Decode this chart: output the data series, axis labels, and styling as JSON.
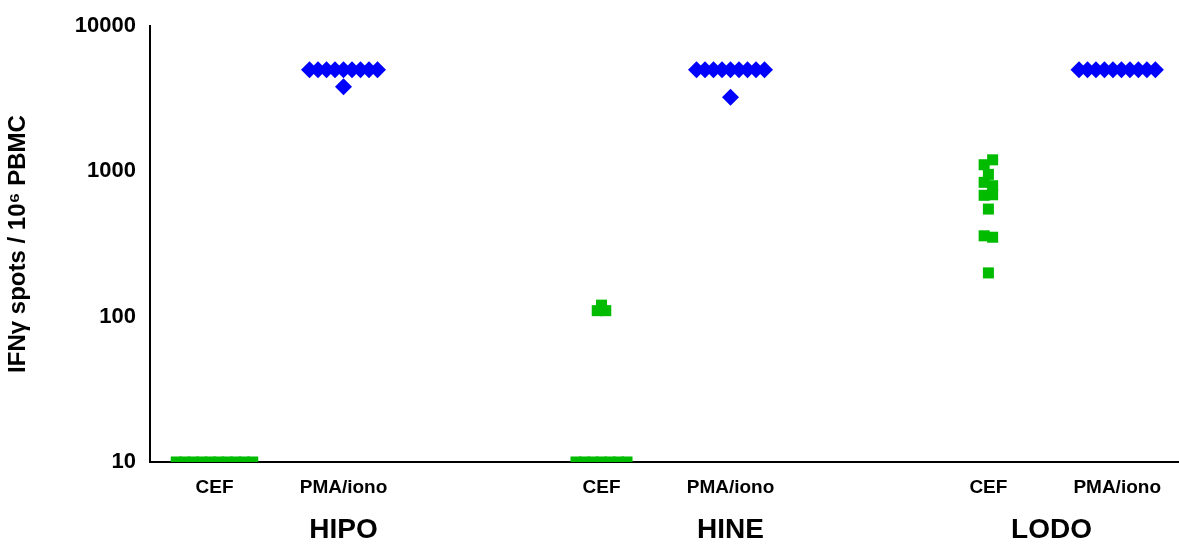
{
  "chart_data": [
    {
      "type": "scatter",
      "xlabel": "HIPO",
      "ylabel": "IFNγ spots / 10⁶ PBMC",
      "categories": [
        "CEF",
        "PMA/iono"
      ],
      "ylim": [
        10,
        10000
      ],
      "yticks": [
        10,
        100,
        1000,
        10000
      ],
      "log": "y",
      "series": [
        {
          "color": "#00bb00",
          "marker": "square",
          "x": [
            "CEF",
            "CEF",
            "CEF",
            "CEF",
            "CEF",
            "CEF",
            "CEF",
            "CEF",
            "CEF",
            "CEF"
          ],
          "values": [
            10,
            10,
            10,
            10,
            10,
            10,
            10,
            10,
            10,
            10
          ]
        },
        {
          "color": "#0000ff",
          "marker": "diamond",
          "x": [
            "PMA/iono",
            "PMA/iono",
            "PMA/iono",
            "PMA/iono",
            "PMA/iono",
            "PMA/iono",
            "PMA/iono",
            "PMA/iono",
            "PMA/iono",
            "PMA/iono"
          ],
          "values": [
            5000,
            5000,
            5000,
            5000,
            5000,
            5000,
            5000,
            5000,
            5000,
            3820
          ]
        }
      ]
    },
    {
      "type": "scatter",
      "xlabel": "HINE",
      "categories": [
        "CEF",
        "PMA/iono"
      ],
      "ylim": [
        10,
        10000
      ],
      "yticks": [
        10,
        100,
        1000,
        10000
      ],
      "log": "y",
      "tick_labels": "x",
      "series": [
        {
          "color": "#00bb00",
          "marker": "square",
          "x": [
            "CEF",
            "CEF",
            "CEF",
            "CEF",
            "CEF",
            "CEF",
            "CEF",
            "CEF",
            "CEF",
            "CEF"
          ],
          "values": [
            10,
            10,
            10,
            10,
            10,
            10,
            10,
            110,
            110,
            120
          ]
        },
        {
          "color": "#0000ff",
          "marker": "diamond",
          "x": [
            "PMA/iono",
            "PMA/iono",
            "PMA/iono",
            "PMA/iono",
            "PMA/iono",
            "PMA/iono",
            "PMA/iono",
            "PMA/iono",
            "PMA/iono",
            "PMA/iono"
          ],
          "values": [
            5000,
            5000,
            5000,
            5000,
            5000,
            5000,
            5000,
            5000,
            5000,
            3230
          ]
        }
      ]
    },
    {
      "type": "scatter",
      "xlabel": "LODO",
      "categories": [
        "CEF",
        "PMA/iono"
      ],
      "ylim": [
        10,
        10000
      ],
      "yticks": [
        10,
        100,
        1000,
        10000
      ],
      "log": "y",
      "tick_labels": "x",
      "series": [
        {
          "color": "#00bb00",
          "marker": "square",
          "x": [
            "CEF",
            "CEF",
            "CEF",
            "CEF",
            "CEF",
            "CEF",
            "CEF",
            "CEF",
            "CEF",
            "CEF",
            "CEF"
          ],
          "values": [
            1110,
            840,
            684,
            1200,
            953,
            796,
            550,
            690,
            360,
            352,
            200
          ]
        },
        {
          "color": "#0000ff",
          "marker": "diamond",
          "x": [
            "PMA/iono",
            "PMA/iono",
            "PMA/iono",
            "PMA/iono",
            "PMA/iono",
            "PMA/iono",
            "PMA/iono",
            "PMA/iono",
            "PMA/iono",
            "PMA/iono"
          ],
          "values": [
            5000,
            5000,
            5000,
            5000,
            5000,
            5000,
            5000,
            5000,
            5000,
            5000
          ]
        }
      ]
    }
  ]
}
